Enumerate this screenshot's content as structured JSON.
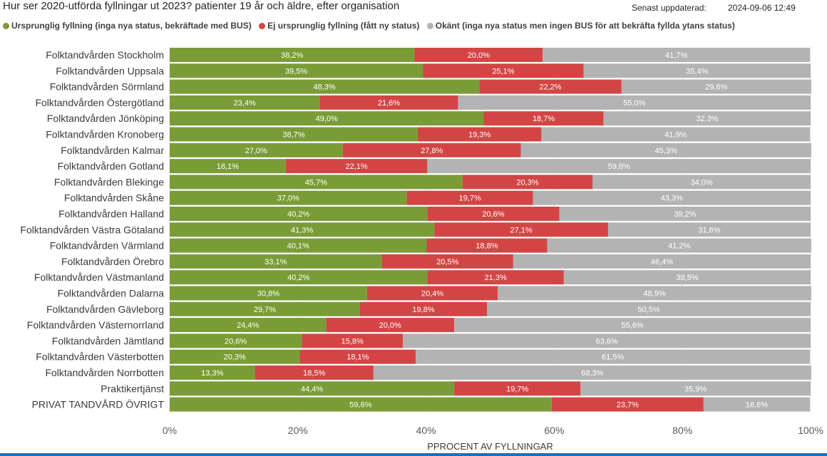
{
  "header": {
    "title": "Hur ser 2020-utförda fyllningar ut 2023? patienter 19 år och äldre, efter organisation",
    "updated_label": "Senast uppdaterad:",
    "updated_value": "2024-09-06 12:49"
  },
  "colors": {
    "green": "#7a9c36",
    "red": "#d34545",
    "gray": "#b3b3b3",
    "text": "#252423"
  },
  "chart_data": {
    "type": "bar",
    "orientation": "horizontal",
    "stacked": "100%",
    "categories": [
      "Folktandvården Stockholm",
      "Folktandvården Uppsala",
      "Folktandvården Sörmland",
      "Folktandvården Östergötland",
      "Folktandvården Jönköping",
      "Folktandvården Kronoberg",
      "Folktandvården Kalmar",
      "Folktandvården Gotland",
      "Folktandvården Blekinge",
      "Folktandvården Skåne",
      "Folktandvården Halland",
      "Folktandvården Västra Götaland",
      "Folktandvården Värmland",
      "Folktandvården Örebro",
      "Folktandvården Västmanland",
      "Folktandvården Dalarna",
      "Folktandvården Gävleborg",
      "Folktandvården Västernorrland",
      "Folktandvården Jämtland",
      "Folktandvården Västerbotten",
      "Folktandvården Norrbotten",
      "Praktikertjänst",
      "PRIVAT TANDVÅRD ÖVRIGT"
    ],
    "series": [
      {
        "name": "Ursprunglig fyllning (inga nya status, bekräftade med BUS)",
        "color": "#7a9c36",
        "values": [
          38.2,
          39.5,
          48.3,
          23.4,
          49.0,
          38.7,
          27.0,
          18.1,
          45.7,
          37.0,
          40.2,
          41.3,
          40.1,
          33.1,
          40.2,
          30.8,
          29.7,
          24.4,
          20.6,
          20.3,
          13.3,
          44.4,
          59.6
        ],
        "labels": [
          "38,2%",
          "39,5%",
          "48,3%",
          "23,4%",
          "49,0%",
          "38,7%",
          "27,0%",
          "18,1%",
          "45,7%",
          "37,0%",
          "40,2%",
          "41,3%",
          "40,1%",
          "33,1%",
          "40,2%",
          "30,8%",
          "29,7%",
          "24,4%",
          "20,6%",
          "20,3%",
          "13,3%",
          "44,4%",
          "59,6%"
        ]
      },
      {
        "name": "Ej ursprunglig fyllning (fått ny status)",
        "color": "#d34545",
        "values": [
          20.0,
          25.1,
          22.2,
          21.6,
          18.7,
          19.3,
          27.8,
          22.1,
          20.3,
          19.7,
          20.6,
          27.1,
          18.8,
          20.5,
          21.3,
          20.4,
          19.8,
          20.0,
          15.8,
          18.1,
          18.5,
          19.7,
          23.7
        ],
        "labels": [
          "20,0%",
          "25,1%",
          "22,2%",
          "21,6%",
          "18,7%",
          "19,3%",
          "27,8%",
          "22,1%",
          "20,3%",
          "19,7%",
          "20,6%",
          "27,1%",
          "18,8%",
          "20,5%",
          "21,3%",
          "20,4%",
          "19,8%",
          "20,0%",
          "15,8%",
          "18,1%",
          "18,5%",
          "19,7%",
          "23,7%"
        ]
      },
      {
        "name": "Okänt (inga nya status men ingen BUS för att bekräfta fyllda ytans status)",
        "color": "#b3b3b3",
        "values": [
          41.7,
          35.4,
          29.6,
          55.0,
          32.3,
          41.9,
          45.3,
          59.8,
          34.0,
          43.3,
          39.2,
          31.6,
          41.2,
          46.4,
          38.5,
          48.9,
          50.5,
          55.6,
          63.6,
          61.5,
          68.3,
          35.9,
          16.6
        ],
        "labels": [
          "41,7%",
          "35,4%",
          "29,6%",
          "55,0%",
          "32,3%",
          "41,9%",
          "45,3%",
          "59,8%",
          "34,0%",
          "43,3%",
          "39,2%",
          "31,6%",
          "41,2%",
          "46,4%",
          "38,5%",
          "48,9%",
          "50,5%",
          "55,6%",
          "63,6%",
          "61,5%",
          "68,3%",
          "35,9%",
          "16,6%"
        ]
      }
    ],
    "x_ticks": [
      "0%",
      "20%",
      "40%",
      "60%",
      "80%",
      "100%"
    ],
    "xlim": [
      0,
      100
    ],
    "xlabel": "PPROCENT AV FYLLNINGAR",
    "legend_position": "top-left",
    "grid": true
  }
}
